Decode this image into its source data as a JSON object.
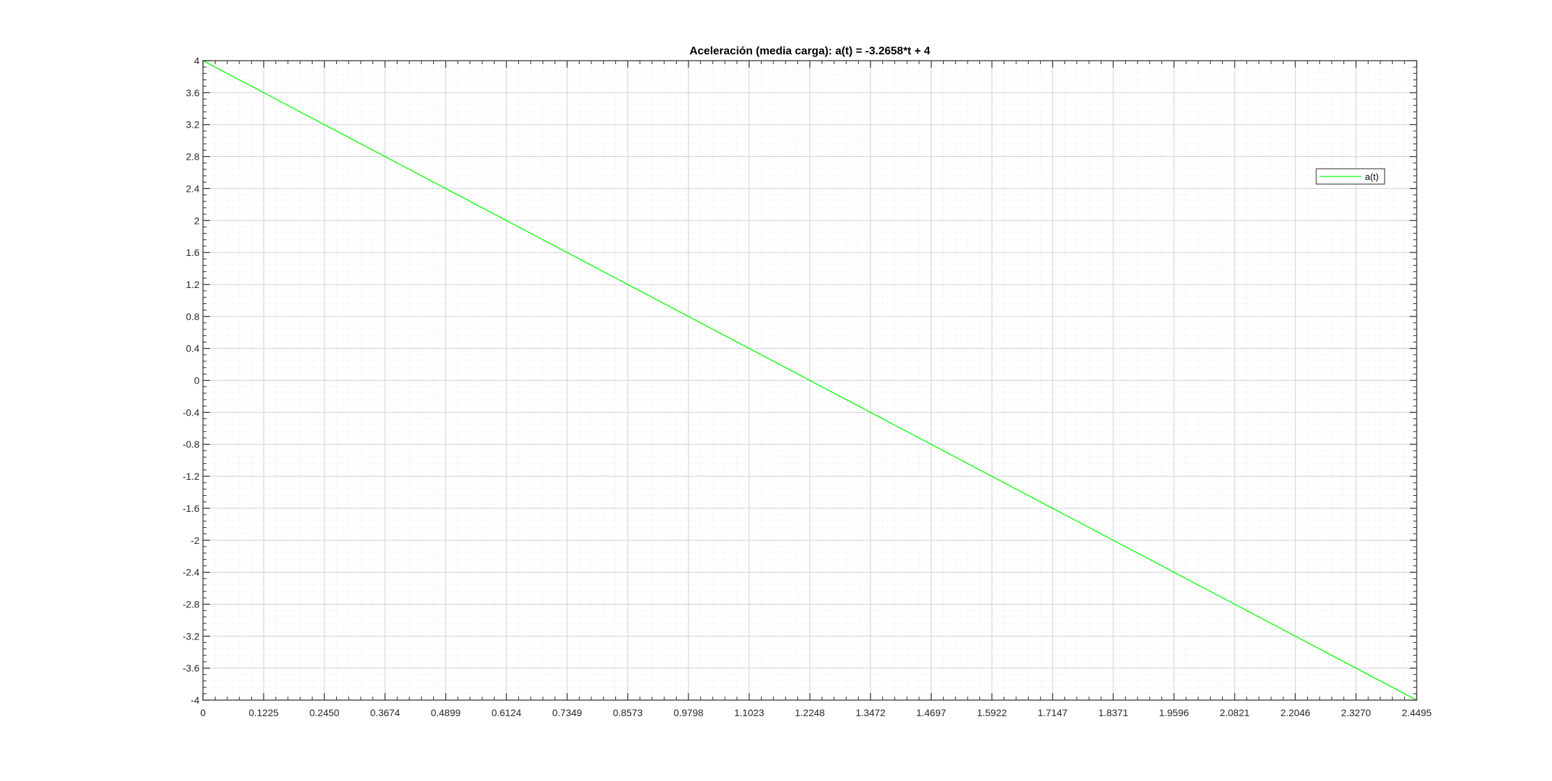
{
  "chart_data": {
    "type": "line",
    "title": "Aceleración (media carga): a(t) = -3.2658*t + 4",
    "xlabel": "",
    "ylabel": "",
    "xlim": [
      0,
      2.4495
    ],
    "ylim": [
      -4,
      4
    ],
    "x_ticks": [
      "0",
      "0.1225",
      "0.2450",
      "0.3674",
      "0.4899",
      "0.6124",
      "0.7349",
      "0.8573",
      "0.9798",
      "1.1023",
      "1.2248",
      "1.3472",
      "1.4697",
      "1.5922",
      "1.7147",
      "1.8371",
      "1.9596",
      "2.0821",
      "2.2046",
      "2.3270",
      "2.4495"
    ],
    "y_ticks": [
      "4",
      "3.6",
      "3.2",
      "2.8",
      "2.4",
      "2",
      "1.6",
      "1.2",
      "0.8",
      "0.4",
      "0",
      "-0.4",
      "-0.8",
      "-1.2",
      "-1.6",
      "-2",
      "-2.4",
      "-2.8",
      "-3.2",
      "-3.6",
      "-4"
    ],
    "grid": true,
    "minor_grid": true,
    "legend_position": "upper-right",
    "series": [
      {
        "name": "a(t)",
        "color": "#00ff00",
        "x": [
          0,
          2.4495
        ],
        "y": [
          4,
          -4
        ]
      }
    ]
  }
}
